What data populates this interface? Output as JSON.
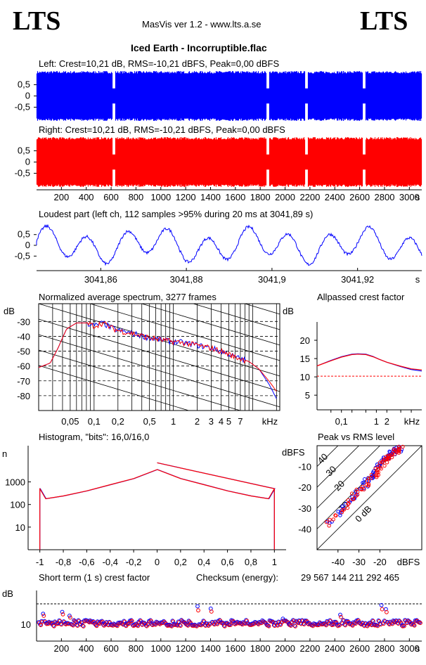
{
  "header": {
    "logo_left": "LTS",
    "logo_right": "LTS",
    "app_title": "MasVis ver 1.2 - www.lts.a.se",
    "track_title": "Iced Earth - Incorruptible.flac"
  },
  "colors": {
    "left": "#0000ff",
    "right": "#ff0000",
    "grid": "#000000",
    "dashed": "#000000"
  },
  "chart_data": [
    {
      "id": "left",
      "type": "area",
      "title": "Left: Crest=10,21 dB, RMS=-10,21 dBFS, Peak=0,00 dBFS",
      "ylim": [
        -1,
        1
      ],
      "yticks": [
        "0,5",
        "0",
        "-0,5"
      ],
      "series": [
        {
          "name": "Left",
          "x_range": [
            0,
            3100
          ],
          "envelope_peak": 1.0
        }
      ]
    },
    {
      "id": "right",
      "type": "area",
      "title": "Right: Crest=10,21 dB, RMS=-10,21 dBFS, Peak=0,00 dBFS",
      "ylim": [
        -1,
        1
      ],
      "yticks": [
        "0,5",
        "0",
        "-0,5"
      ],
      "xticks": [
        "200",
        "400",
        "600",
        "800",
        "1000",
        "1200",
        "1400",
        "1600",
        "1800",
        "2000",
        "2200",
        "2400",
        "2600",
        "2800",
        "3000"
      ],
      "xlabel": "s",
      "series": [
        {
          "name": "Right",
          "x_range": [
            0,
            3100
          ],
          "envelope_peak": 1.0
        }
      ]
    },
    {
      "id": "loudest",
      "type": "line",
      "title": "Loudest part (left  ch, 112 samples >95% during 20 ms at 3041,89 s)",
      "ylim": [
        -1,
        1
      ],
      "yticks": [
        "0,5",
        "0",
        "-0,5"
      ],
      "xlim": [
        3041.845,
        3041.935
      ],
      "xticks": [
        "3041,86",
        "3041,88",
        "3041,9",
        "3041,92"
      ],
      "xlabel": "s"
    },
    {
      "id": "spectrum",
      "type": "line",
      "title": "Normalized average spectrum, 3277 frames",
      "ylabel": "dB",
      "ylim": [
        -90,
        -18
      ],
      "yticks": [
        "-30",
        "-40",
        "-50",
        "-60",
        "-70",
        "-80"
      ],
      "xscale": "log",
      "xlim": [
        0.02,
        22
      ],
      "xticks": [
        "0,05",
        "0,1",
        "0,2",
        "0,5",
        "1",
        "2",
        "3",
        "4",
        "5",
        "7"
      ],
      "xlabel": "kHz",
      "series": [
        {
          "name": "Left",
          "x": [
            0.02,
            0.028,
            0.035,
            0.045,
            0.06,
            0.08,
            0.1,
            0.13,
            0.16,
            0.2,
            0.3,
            0.5,
            0.8,
            1.2,
            2,
            3,
            4,
            5,
            6,
            7,
            9,
            12,
            16,
            20
          ],
          "y": [
            -61,
            -58,
            -48,
            -35,
            -31,
            -31,
            -33,
            -31,
            -34,
            -36,
            -38,
            -41,
            -43,
            -44,
            -46,
            -48,
            -50,
            -52,
            -54,
            -55,
            -57,
            -62,
            -72,
            -82
          ]
        },
        {
          "name": "Right",
          "x": [
            0.02,
            0.028,
            0.035,
            0.045,
            0.06,
            0.08,
            0.1,
            0.13,
            0.16,
            0.2,
            0.3,
            0.5,
            0.8,
            1.2,
            2,
            3,
            4,
            5,
            6,
            7,
            9,
            12,
            16,
            20
          ],
          "y": [
            -61,
            -58,
            -48,
            -35,
            -31,
            -31,
            -33,
            -31,
            -34,
            -36,
            -38,
            -41,
            -43,
            -44,
            -46,
            -48,
            -50,
            -52,
            -54,
            -55,
            -57,
            -62,
            -70,
            -77
          ]
        }
      ]
    },
    {
      "id": "allpass",
      "type": "line",
      "title": "Allpassed crest factor",
      "ylabel": "dB",
      "ylim": [
        1,
        25
      ],
      "yticks": [
        "20",
        "15",
        "10",
        "5"
      ],
      "xscale": "log",
      "xlim": [
        0.02,
        20
      ],
      "xticks": [
        "0,1",
        "1",
        "2"
      ],
      "xlabel": "kHz",
      "reference_line": 10.2,
      "series": [
        {
          "name": "Left",
          "x": [
            0.02,
            0.05,
            0.1,
            0.2,
            0.3,
            0.5,
            0.8,
            1.2,
            2,
            5,
            10,
            20
          ],
          "y": [
            13,
            14.5,
            15.5,
            16.2,
            16.3,
            16.2,
            15.6,
            14.8,
            14,
            12.8,
            12,
            11.6
          ]
        },
        {
          "name": "Right",
          "x": [
            0.02,
            0.05,
            0.1,
            0.2,
            0.3,
            0.5,
            0.8,
            1.2,
            2,
            5,
            10,
            20
          ],
          "y": [
            13,
            14.4,
            15.4,
            16.1,
            16.2,
            16.1,
            15.5,
            14.8,
            14,
            12.9,
            12.2,
            11.9
          ]
        }
      ]
    },
    {
      "id": "histogram",
      "type": "line",
      "title": "Histogram, \"bits\": 16,0/16,0",
      "ylabel": "n",
      "yscale": "log",
      "ylim": [
        1,
        40000
      ],
      "yticks": [
        "1000",
        "100",
        "10"
      ],
      "xlim": [
        -1.1,
        1.1
      ],
      "xticks": [
        "-1",
        "-0,8",
        "-0,6",
        "-0,4",
        "-0,2",
        "0",
        "0,2",
        "0,4",
        "0,6",
        "0,8",
        "1"
      ],
      "series": [
        {
          "name": "Left",
          "x": [
            -1,
            -0.95,
            -0.8,
            -0.6,
            -0.4,
            -0.2,
            0,
            0.2,
            0.4,
            0.6,
            0.8,
            0.95,
            1
          ],
          "y": [
            500,
            180,
            240,
            400,
            750,
            1400,
            3500,
            1400,
            750,
            400,
            240,
            180,
            500
          ]
        },
        {
          "name": "Right",
          "x": [
            -1,
            -0.95,
            -0.8,
            -0.6,
            -0.4,
            -0.2,
            0,
            0.2,
            0.4,
            0.6,
            0.8,
            0.95,
            1
          ],
          "y": [
            500,
            180,
            240,
            400,
            750,
            1400,
            3500,
            1400,
            750,
            400,
            240,
            180,
            500
          ]
        }
      ]
    },
    {
      "id": "peak_rms",
      "type": "scatter",
      "title": "Peak vs RMS level",
      "ylabel": "dBFS",
      "xlabel": "dBFS",
      "xlim": [
        -50,
        0
      ],
      "ylim": [
        -50,
        0
      ],
      "xticks": [
        "-40",
        "-30",
        "-20"
      ],
      "yticks": [
        "-10",
        "-20",
        "-30",
        "-40"
      ],
      "diagonal_labels": [
        "40",
        "30",
        "20",
        "10",
        "0 dB"
      ],
      "series": [
        {
          "name": "Left",
          "x": [
            -44,
            -40,
            -37,
            -35,
            -33,
            -31,
            -29,
            -27,
            -26,
            -24,
            -23,
            -22,
            -21,
            -20,
            -19,
            -18,
            -17,
            -16,
            -15,
            -14,
            -13,
            -12,
            -11,
            -10
          ],
          "y": [
            -36,
            -33,
            -30,
            -27,
            -25,
            -23,
            -21,
            -19,
            -17,
            -16,
            -14,
            -13,
            -11,
            -9,
            -8,
            -7,
            -6,
            -5,
            -4,
            -4,
            -3,
            -2,
            -2,
            -1
          ]
        },
        {
          "name": "Right",
          "x": [
            -45,
            -41,
            -38,
            -36,
            -34,
            -32,
            -30,
            -28,
            -26,
            -25,
            -23,
            -22,
            -21,
            -20,
            -19,
            -18,
            -17,
            -16,
            -15,
            -14,
            -13,
            -12,
            -11,
            -10
          ],
          "y": [
            -37,
            -34,
            -31,
            -29,
            -26,
            -24,
            -22,
            -20,
            -18,
            -17,
            -15,
            -13,
            -12,
            -10,
            -9,
            -8,
            -7,
            -6,
            -5,
            -4,
            -3,
            -3,
            -2,
            -1
          ]
        }
      ]
    },
    {
      "id": "short_crest",
      "type": "scatter",
      "title": "Short term (1 s) crest factor",
      "ylabel": "dB",
      "ytick_label": "10",
      "xticks": [
        "200",
        "400",
        "600",
        "800",
        "1000",
        "1200",
        "1400",
        "1600",
        "1800",
        "2000",
        "2200",
        "2400",
        "2600",
        "2800",
        "3000"
      ],
      "xlabel": "s",
      "reference_line": 20,
      "x_range": [
        0,
        3100
      ]
    }
  ],
  "checksum": {
    "label": "Checksum (energy):",
    "value": "29 567 144 211 292 465"
  }
}
